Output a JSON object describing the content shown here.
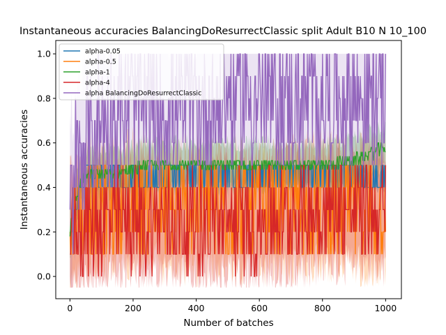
{
  "chart_data": {
    "type": "line",
    "title": "Instantaneous accuracies BalancingDoResurrectClassic split Adult B10 N 10_100",
    "xlabel": "Number of batches",
    "ylabel": "Instantaneous accuracies",
    "xlim": [
      -45,
      1050
    ],
    "ylim": [
      -0.1,
      1.06
    ],
    "xticks": [
      0,
      200,
      400,
      600,
      800,
      1000
    ],
    "yticks": [
      0.0,
      0.2,
      0.4,
      0.6,
      0.8,
      1.0
    ],
    "xtick_labels": [
      "0",
      "200",
      "400",
      "600",
      "800",
      "1000"
    ],
    "ytick_labels": [
      "0.0",
      "0.2",
      "0.4",
      "0.6",
      "0.8",
      "1.0"
    ],
    "legend_position": "top-left",
    "grid": false,
    "series": [
      {
        "name": "alpha-0.05",
        "color": "#1f77b4",
        "mean_points": [
          [
            0,
            0.2
          ],
          [
            20,
            0.3
          ],
          [
            40,
            0.45
          ],
          [
            100,
            0.45
          ],
          [
            200,
            0.44
          ],
          [
            300,
            0.45
          ],
          [
            400,
            0.45
          ],
          [
            500,
            0.45
          ],
          [
            600,
            0.45
          ],
          [
            700,
            0.45
          ],
          [
            800,
            0.45
          ],
          [
            900,
            0.45
          ],
          [
            1000,
            0.42
          ]
        ],
        "band": [
          0.4,
          0.48
        ]
      },
      {
        "name": "alpha-0.5",
        "color": "#ff7f0e",
        "mean_points": [
          [
            0,
            0.2
          ],
          [
            50,
            0.3
          ],
          [
            100,
            0.3
          ],
          [
            200,
            0.33
          ],
          [
            300,
            0.3
          ],
          [
            400,
            0.3
          ],
          [
            500,
            0.3
          ],
          [
            600,
            0.3
          ],
          [
            700,
            0.3
          ],
          [
            800,
            0.32
          ],
          [
            900,
            0.3
          ],
          [
            1000,
            0.3
          ]
        ],
        "band": [
          0.0,
          0.5
        ]
      },
      {
        "name": "alpha-1",
        "color": "#2ca02c",
        "mean_points": [
          [
            0,
            0.2
          ],
          [
            20,
            0.35
          ],
          [
            40,
            0.45
          ],
          [
            100,
            0.46
          ],
          [
            200,
            0.48
          ],
          [
            230,
            0.5
          ],
          [
            400,
            0.5
          ],
          [
            600,
            0.5
          ],
          [
            800,
            0.5
          ],
          [
            900,
            0.52
          ],
          [
            950,
            0.55
          ],
          [
            1000,
            0.58
          ]
        ],
        "band": [
          0.4,
          0.6
        ]
      },
      {
        "name": "alpha-4",
        "color": "#d62728",
        "mean_points": [
          [
            0,
            0.2
          ],
          [
            100,
            0.25
          ],
          [
            200,
            0.25
          ],
          [
            300,
            0.25
          ],
          [
            400,
            0.25
          ],
          [
            500,
            0.25
          ],
          [
            600,
            0.25
          ],
          [
            700,
            0.28
          ],
          [
            800,
            0.3
          ],
          [
            900,
            0.3
          ],
          [
            1000,
            0.3
          ]
        ],
        "band": [
          0.0,
          0.5
        ]
      },
      {
        "name": "alpha BalancingDoResurrectClassic",
        "color": "#9467bd",
        "mean_points": [
          [
            0,
            0.3
          ],
          [
            20,
            0.5
          ],
          [
            50,
            0.6
          ],
          [
            100,
            0.7
          ],
          [
            200,
            0.75
          ],
          [
            300,
            0.75
          ],
          [
            400,
            0.75
          ],
          [
            500,
            0.8
          ],
          [
            600,
            0.8
          ],
          [
            700,
            0.78
          ],
          [
            800,
            0.8
          ],
          [
            900,
            0.8
          ],
          [
            1000,
            0.8
          ]
        ],
        "band": [
          0.3,
          1.0
        ]
      }
    ]
  }
}
